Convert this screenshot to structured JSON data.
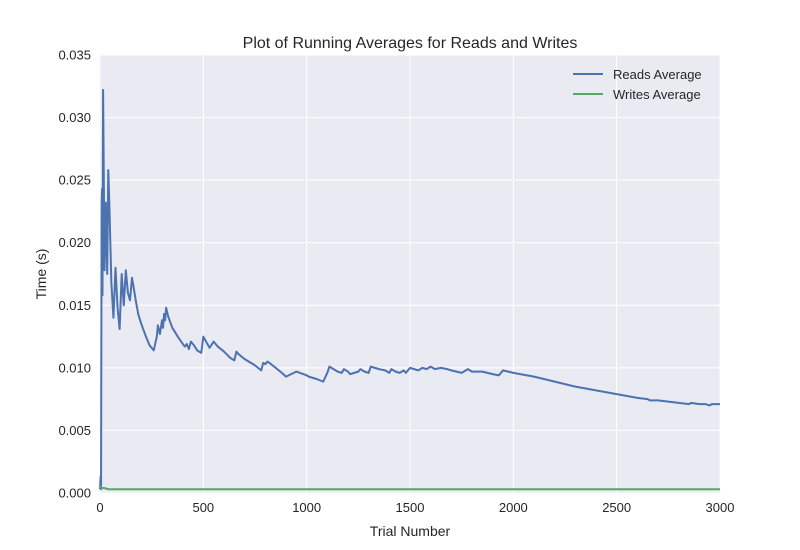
{
  "chart_data": {
    "type": "line",
    "title": "Plot of Running Averages for Reads and Writes",
    "xlabel": "Trial Number",
    "ylabel": "Time (s)",
    "xlim": [
      0,
      3000
    ],
    "ylim": [
      0,
      0.035
    ],
    "xticks": [
      0,
      500,
      1000,
      1500,
      2000,
      2500,
      3000
    ],
    "xtick_labels": [
      "0",
      "500",
      "1000",
      "1500",
      "2000",
      "2500",
      "3000"
    ],
    "yticks": [
      0,
      0.005,
      0.01,
      0.015,
      0.02,
      0.025,
      0.03,
      0.035
    ],
    "ytick_labels": [
      "0.000",
      "0.005",
      "0.010",
      "0.015",
      "0.020",
      "0.025",
      "0.030",
      "0.035"
    ],
    "grid": true,
    "legend_position": "top-right",
    "background_color": "#eaeaf2",
    "series": [
      {
        "name": "Reads Average",
        "color": "#4c72b0",
        "x": [
          0,
          3,
          5,
          8,
          10,
          12,
          15,
          18,
          22,
          28,
          35,
          40,
          45,
          55,
          65,
          75,
          85,
          95,
          105,
          115,
          125,
          135,
          145,
          155,
          165,
          175,
          185,
          200,
          220,
          240,
          260,
          275,
          280,
          290,
          300,
          305,
          310,
          315,
          320,
          330,
          350,
          380,
          410,
          420,
          430,
          440,
          455,
          470,
          490,
          500,
          510,
          530,
          550,
          570,
          600,
          630,
          650,
          660,
          670,
          700,
          750,
          780,
          790,
          800,
          810,
          820,
          850,
          880,
          900,
          950,
          1000,
          1010,
          1050,
          1080,
          1100,
          1110,
          1130,
          1150,
          1170,
          1180,
          1200,
          1210,
          1250,
          1260,
          1280,
          1300,
          1310,
          1350,
          1380,
          1400,
          1410,
          1430,
          1450,
          1470,
          1480,
          1500,
          1520,
          1540,
          1560,
          1580,
          1600,
          1620,
          1650,
          1680,
          1700,
          1750,
          1780,
          1800,
          1850,
          1900,
          1930,
          1950,
          2000,
          2100,
          2200,
          2300,
          2400,
          2500,
          2600,
          2650,
          2660,
          2700,
          2750,
          2800,
          2850,
          2860,
          2900,
          2930,
          2950,
          2960,
          2980,
          3000
        ],
        "values": [
          0.0003,
          0.0013,
          0.0003,
          0.0233,
          0.0243,
          0.0158,
          0.0322,
          0.0258,
          0.0178,
          0.0232,
          0.0175,
          0.0258,
          0.0232,
          0.0168,
          0.014,
          0.018,
          0.0148,
          0.0131,
          0.0175,
          0.015,
          0.0178,
          0.016,
          0.0154,
          0.0172,
          0.0162,
          0.0152,
          0.0143,
          0.0135,
          0.0126,
          0.0118,
          0.0114,
          0.0125,
          0.0134,
          0.0127,
          0.0138,
          0.0132,
          0.0143,
          0.0138,
          0.0148,
          0.0141,
          0.0132,
          0.0124,
          0.0117,
          0.0119,
          0.0115,
          0.0121,
          0.0118,
          0.0114,
          0.0112,
          0.0125,
          0.0122,
          0.0116,
          0.0121,
          0.0117,
          0.0113,
          0.0108,
          0.0106,
          0.0113,
          0.0111,
          0.0107,
          0.0102,
          0.0098,
          0.0104,
          0.0103,
          0.0105,
          0.0104,
          0.01,
          0.0096,
          0.0093,
          0.0097,
          0.0094,
          0.0093,
          0.0091,
          0.0089,
          0.0096,
          0.0101,
          0.0099,
          0.0097,
          0.0096,
          0.0099,
          0.0097,
          0.0095,
          0.0097,
          0.0099,
          0.0097,
          0.0096,
          0.0101,
          0.0099,
          0.0098,
          0.0096,
          0.0099,
          0.0097,
          0.0096,
          0.0098,
          0.0096,
          0.01,
          0.0099,
          0.0098,
          0.01,
          0.0099,
          0.0101,
          0.0099,
          0.01,
          0.0099,
          0.0098,
          0.0096,
          0.0099,
          0.0097,
          0.0097,
          0.0095,
          0.0094,
          0.0098,
          0.0096,
          0.0093,
          0.0089,
          0.0085,
          0.0082,
          0.0079,
          0.0076,
          0.0075,
          0.0074,
          0.0074,
          0.0073,
          0.0072,
          0.0071,
          0.0072,
          0.0071,
          0.0071,
          0.007,
          0.0071,
          0.0071,
          0.0071
        ]
      },
      {
        "name": "Writes Average",
        "color": "#55a868",
        "x": [
          0,
          5,
          10,
          20,
          40,
          60,
          80,
          100,
          150,
          200,
          300,
          400,
          500,
          600,
          800,
          1000,
          1500,
          2000,
          2500,
          3000
        ],
        "values": [
          0.0006,
          0.0004,
          0.0004,
          0.0004,
          0.0003,
          0.0003,
          0.0003,
          0.0003,
          0.0003,
          0.0003,
          0.0003,
          0.0003,
          0.0003,
          0.0003,
          0.0003,
          0.0003,
          0.0003,
          0.0003,
          0.0003,
          0.0003
        ]
      }
    ]
  }
}
